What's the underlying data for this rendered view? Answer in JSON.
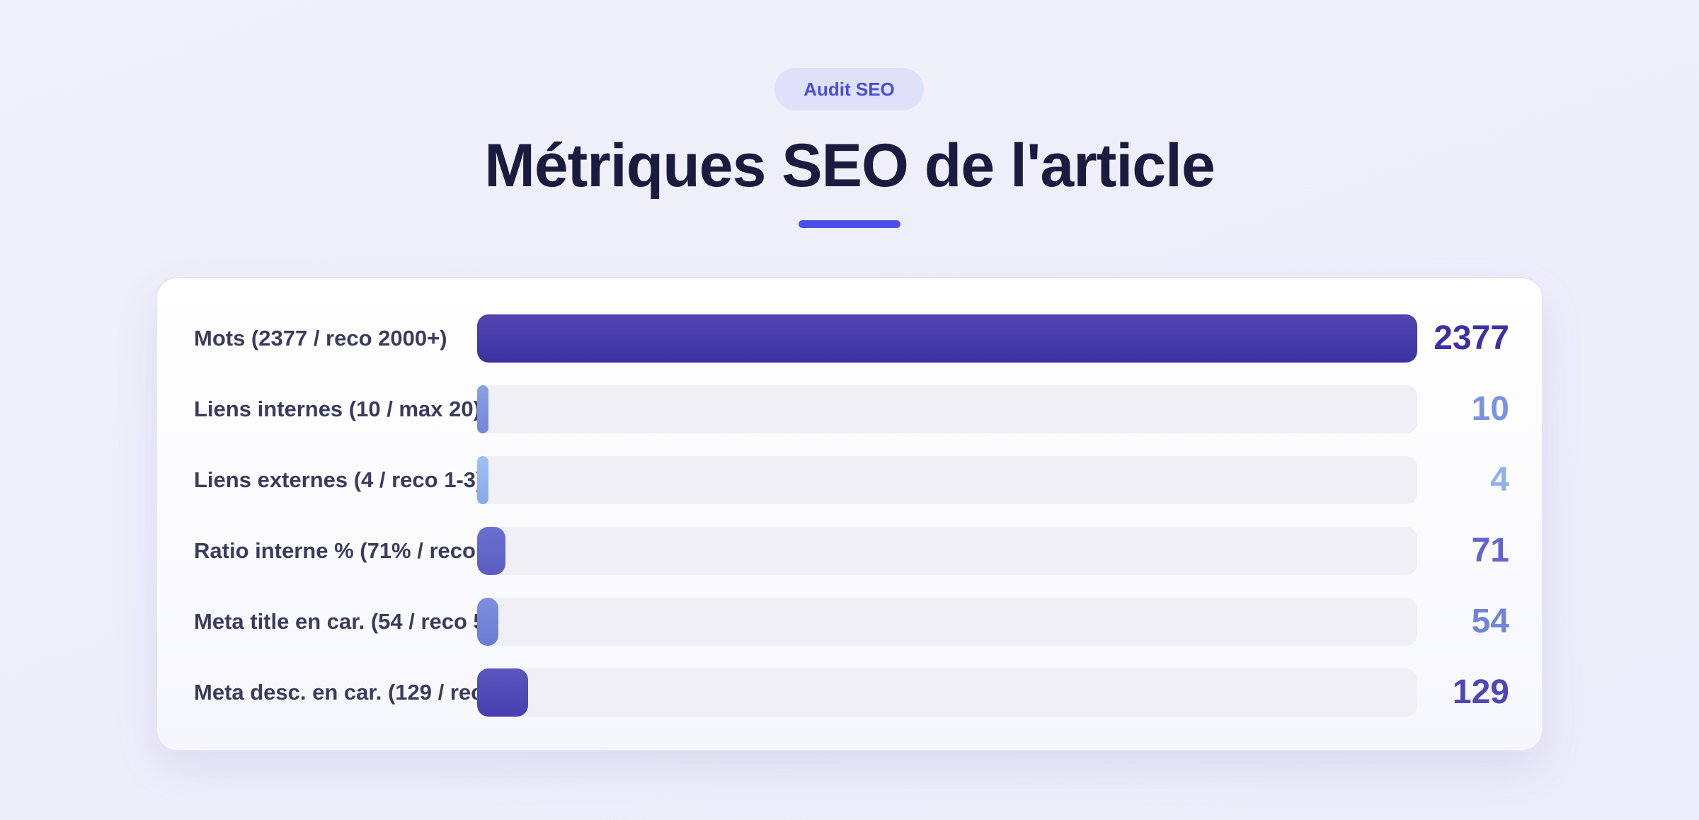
{
  "badge": "Audit SEO",
  "title": "Métriques SEO de l'article",
  "chart_data": {
    "type": "bar",
    "orientation": "horizontal",
    "categories": [
      "Mots (2377 / reco 2000+)",
      "Liens internes (10 / max 20)",
      "Liens externes (4 / reco 1-3)",
      "Ratio interne % (71% / reco",
      "Meta title en car. (54 / reco 5",
      "Meta desc. en car. (129 / reco"
    ],
    "values": [
      2377,
      10,
      4,
      71,
      54,
      129
    ],
    "value_labels": [
      "2377",
      "10",
      "4",
      "71",
      "54",
      "129"
    ],
    "xlim": [
      0,
      2377
    ],
    "colors": [
      "#3b32a2",
      "#7b93de",
      "#8fb2ef",
      "#6166c8",
      "#7184d8",
      "#4f47b4"
    ],
    "track_color": "#efeff5",
    "grid": false,
    "legend": "none"
  }
}
